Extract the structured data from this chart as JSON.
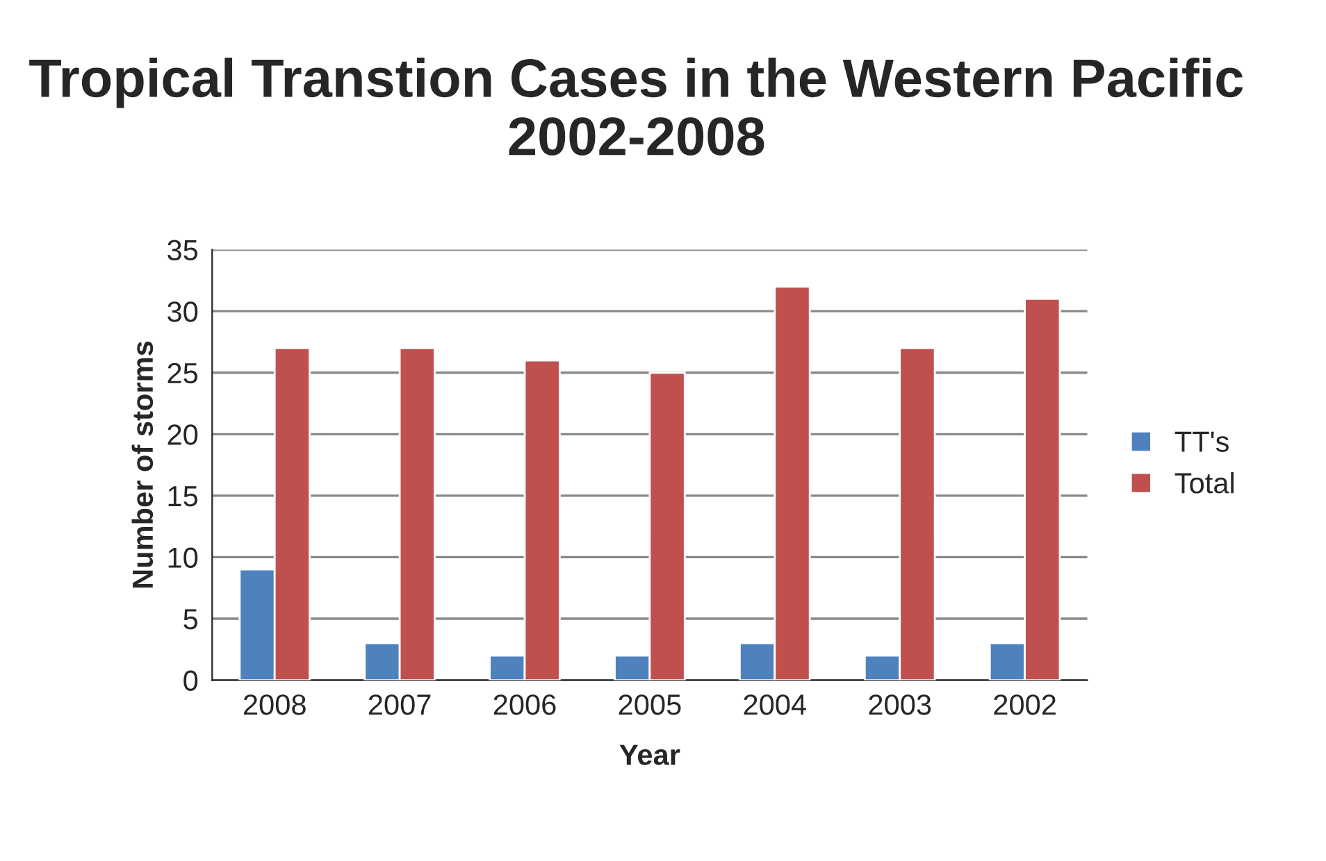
{
  "chart_data": {
    "type": "bar",
    "title": "Tropical Transtion Cases in the Western Pacific 2002-2008",
    "xlabel": "Year",
    "ylabel": "Number of storms",
    "categories": [
      "2008",
      "2007",
      "2006",
      "2005",
      "2004",
      "2003",
      "2002"
    ],
    "series": [
      {
        "name": "TT's",
        "color": "#4f81bd",
        "values": [
          9,
          3,
          2,
          2,
          3,
          2,
          3
        ]
      },
      {
        "name": "Total",
        "color": "#c0504d",
        "values": [
          27,
          27,
          26,
          25,
          32,
          27,
          31
        ]
      }
    ],
    "ylim": [
      0,
      35
    ],
    "yticks": [
      0,
      5,
      10,
      15,
      20,
      25,
      30,
      35
    ],
    "grid": "y",
    "legend": "right"
  }
}
